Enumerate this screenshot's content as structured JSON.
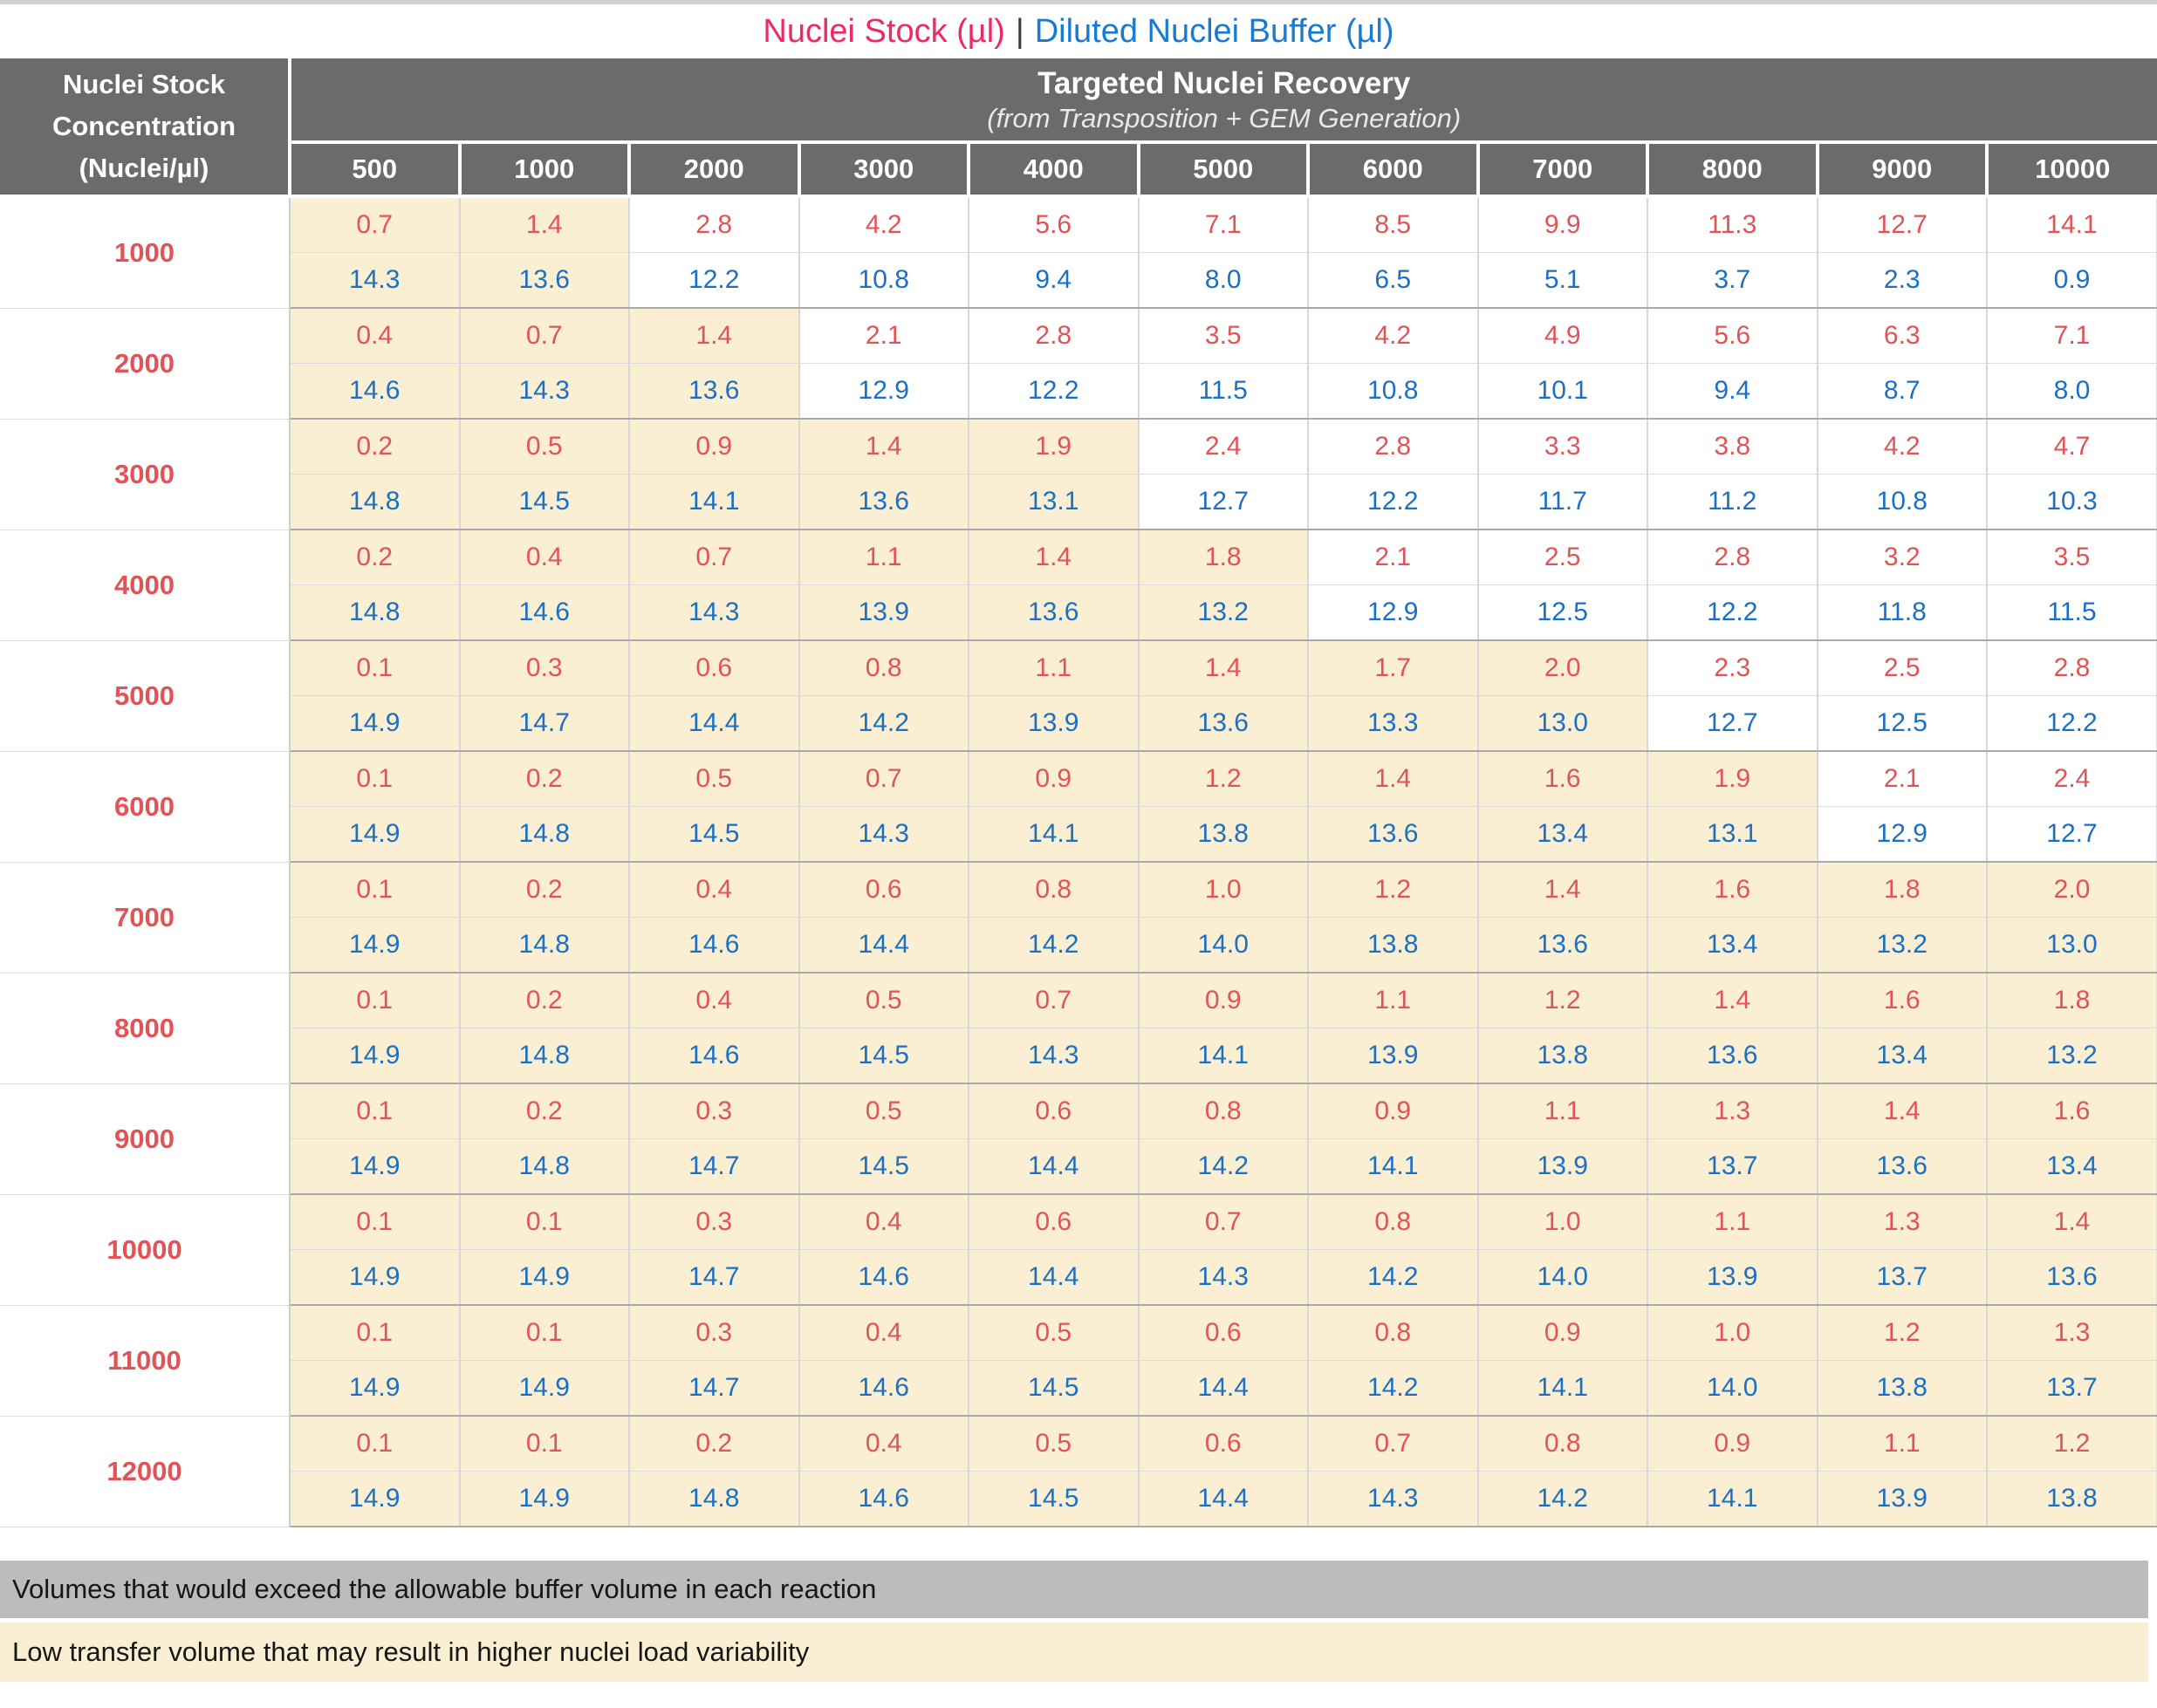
{
  "title": {
    "stock_label": "Nuclei Stock (µl)",
    "separator": "|",
    "buffer_label": "Diluted Nuclei Buffer (µl)"
  },
  "colors": {
    "stock_value_red": "#e25357",
    "buffer_value_blue": "#1b6fc4",
    "title_red": "#ee2a62",
    "title_blue": "#187bd1",
    "header_gray": "#6b6b6b",
    "low_transfer_cream": "#faefd2",
    "exceed_gray": "#bcbcbc"
  },
  "chart_data": {
    "type": "table",
    "row_header_lines": [
      "Nuclei Stock",
      "Concentration",
      "(Nuclei/µl)"
    ],
    "column_group_title": "Targeted Nuclei Recovery",
    "column_group_subtitle": "(from Transposition + GEM Generation)",
    "columns": [
      "500",
      "1000",
      "2000",
      "3000",
      "4000",
      "5000",
      "6000",
      "7000",
      "8000",
      "9000",
      "10000"
    ],
    "rows": [
      {
        "concentration": "1000",
        "nuclei_stock_ul": [
          "0.7",
          "1.4",
          "2.8",
          "4.2",
          "5.6",
          "7.1",
          "8.5",
          "9.9",
          "11.3",
          "12.7",
          "14.1"
        ],
        "diluted_buffer_ul": [
          "14.3",
          "13.6",
          "12.2",
          "10.8",
          "9.4",
          "8.0",
          "6.5",
          "5.1",
          "3.7",
          "2.3",
          "0.9"
        ],
        "low_transfer_highlight_cols": 2
      },
      {
        "concentration": "2000",
        "nuclei_stock_ul": [
          "0.4",
          "0.7",
          "1.4",
          "2.1",
          "2.8",
          "3.5",
          "4.2",
          "4.9",
          "5.6",
          "6.3",
          "7.1"
        ],
        "diluted_buffer_ul": [
          "14.6",
          "14.3",
          "13.6",
          "12.9",
          "12.2",
          "11.5",
          "10.8",
          "10.1",
          "9.4",
          "8.7",
          "8.0"
        ],
        "low_transfer_highlight_cols": 3
      },
      {
        "concentration": "3000",
        "nuclei_stock_ul": [
          "0.2",
          "0.5",
          "0.9",
          "1.4",
          "1.9",
          "2.4",
          "2.8",
          "3.3",
          "3.8",
          "4.2",
          "4.7"
        ],
        "diluted_buffer_ul": [
          "14.8",
          "14.5",
          "14.1",
          "13.6",
          "13.1",
          "12.7",
          "12.2",
          "11.7",
          "11.2",
          "10.8",
          "10.3"
        ],
        "low_transfer_highlight_cols": 5
      },
      {
        "concentration": "4000",
        "nuclei_stock_ul": [
          "0.2",
          "0.4",
          "0.7",
          "1.1",
          "1.4",
          "1.8",
          "2.1",
          "2.5",
          "2.8",
          "3.2",
          "3.5"
        ],
        "diluted_buffer_ul": [
          "14.8",
          "14.6",
          "14.3",
          "13.9",
          "13.6",
          "13.2",
          "12.9",
          "12.5",
          "12.2",
          "11.8",
          "11.5"
        ],
        "low_transfer_highlight_cols": 6
      },
      {
        "concentration": "5000",
        "nuclei_stock_ul": [
          "0.1",
          "0.3",
          "0.6",
          "0.8",
          "1.1",
          "1.4",
          "1.7",
          "2.0",
          "2.3",
          "2.5",
          "2.8"
        ],
        "diluted_buffer_ul": [
          "14.9",
          "14.7",
          "14.4",
          "14.2",
          "13.9",
          "13.6",
          "13.3",
          "13.0",
          "12.7",
          "12.5",
          "12.2"
        ],
        "low_transfer_highlight_cols": 8
      },
      {
        "concentration": "6000",
        "nuclei_stock_ul": [
          "0.1",
          "0.2",
          "0.5",
          "0.7",
          "0.9",
          "1.2",
          "1.4",
          "1.6",
          "1.9",
          "2.1",
          "2.4"
        ],
        "diluted_buffer_ul": [
          "14.9",
          "14.8",
          "14.5",
          "14.3",
          "14.1",
          "13.8",
          "13.6",
          "13.4",
          "13.1",
          "12.9",
          "12.7"
        ],
        "low_transfer_highlight_cols": 9
      },
      {
        "concentration": "7000",
        "nuclei_stock_ul": [
          "0.1",
          "0.2",
          "0.4",
          "0.6",
          "0.8",
          "1.0",
          "1.2",
          "1.4",
          "1.6",
          "1.8",
          "2.0"
        ],
        "diluted_buffer_ul": [
          "14.9",
          "14.8",
          "14.6",
          "14.4",
          "14.2",
          "14.0",
          "13.8",
          "13.6",
          "13.4",
          "13.2",
          "13.0"
        ],
        "low_transfer_highlight_cols": 11
      },
      {
        "concentration": "8000",
        "nuclei_stock_ul": [
          "0.1",
          "0.2",
          "0.4",
          "0.5",
          "0.7",
          "0.9",
          "1.1",
          "1.2",
          "1.4",
          "1.6",
          "1.8"
        ],
        "diluted_buffer_ul": [
          "14.9",
          "14.8",
          "14.6",
          "14.5",
          "14.3",
          "14.1",
          "13.9",
          "13.8",
          "13.6",
          "13.4",
          "13.2"
        ],
        "low_transfer_highlight_cols": 11
      },
      {
        "concentration": "9000",
        "nuclei_stock_ul": [
          "0.1",
          "0.2",
          "0.3",
          "0.5",
          "0.6",
          "0.8",
          "0.9",
          "1.1",
          "1.3",
          "1.4",
          "1.6"
        ],
        "diluted_buffer_ul": [
          "14.9",
          "14.8",
          "14.7",
          "14.5",
          "14.4",
          "14.2",
          "14.1",
          "13.9",
          "13.7",
          "13.6",
          "13.4"
        ],
        "low_transfer_highlight_cols": 11
      },
      {
        "concentration": "10000",
        "nuclei_stock_ul": [
          "0.1",
          "0.1",
          "0.3",
          "0.4",
          "0.6",
          "0.7",
          "0.8",
          "1.0",
          "1.1",
          "1.3",
          "1.4"
        ],
        "diluted_buffer_ul": [
          "14.9",
          "14.9",
          "14.7",
          "14.6",
          "14.4",
          "14.3",
          "14.2",
          "14.0",
          "13.9",
          "13.7",
          "13.6"
        ],
        "low_transfer_highlight_cols": 11
      },
      {
        "concentration": "11000",
        "nuclei_stock_ul": [
          "0.1",
          "0.1",
          "0.3",
          "0.4",
          "0.5",
          "0.6",
          "0.8",
          "0.9",
          "1.0",
          "1.2",
          "1.3"
        ],
        "diluted_buffer_ul": [
          "14.9",
          "14.9",
          "14.7",
          "14.6",
          "14.5",
          "14.4",
          "14.2",
          "14.1",
          "14.0",
          "13.8",
          "13.7"
        ],
        "low_transfer_highlight_cols": 11
      },
      {
        "concentration": "12000",
        "nuclei_stock_ul": [
          "0.1",
          "0.1",
          "0.2",
          "0.4",
          "0.5",
          "0.6",
          "0.7",
          "0.8",
          "0.9",
          "1.1",
          "1.2"
        ],
        "diluted_buffer_ul": [
          "14.9",
          "14.9",
          "14.8",
          "14.6",
          "14.5",
          "14.4",
          "14.3",
          "14.2",
          "14.1",
          "13.9",
          "13.8"
        ],
        "low_transfer_highlight_cols": 11
      }
    ]
  },
  "legend": {
    "exceed_label": "Volumes that would exceed the allowable buffer volume in each reaction",
    "low_transfer_label": "Low transfer volume that may result in higher nuclei load variability"
  }
}
